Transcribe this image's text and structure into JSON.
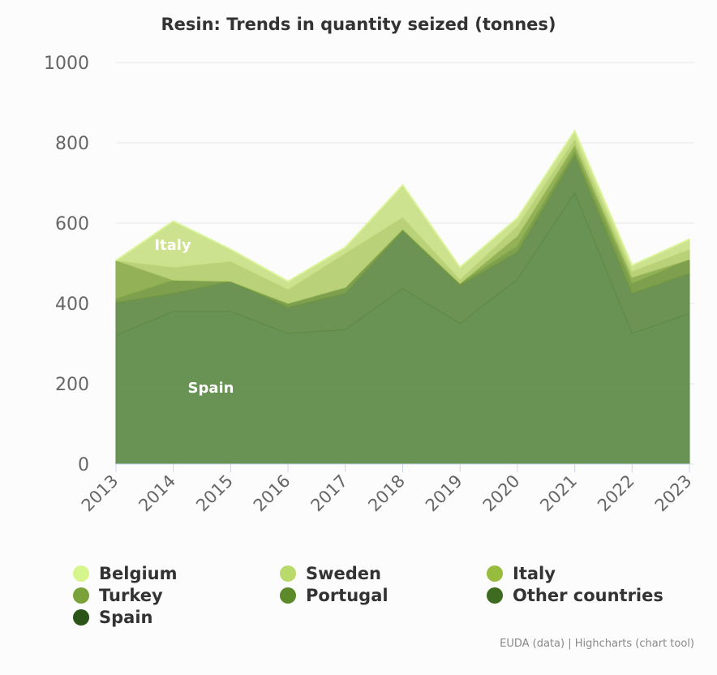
{
  "chart_data": {
    "type": "area",
    "stacked": true,
    "title": "Resin: Trends in quantity seized (tonnes)",
    "xlabel": "",
    "ylabel": "",
    "categories": [
      "2013",
      "2014",
      "2015",
      "2016",
      "2017",
      "2018",
      "2019",
      "2020",
      "2021",
      "2022",
      "2023"
    ],
    "ylim": [
      0,
      1000
    ],
    "yticks": [
      "0",
      "200",
      "400",
      "600",
      "800",
      "1000"
    ],
    "grid": true,
    "legend_position": "bottom",
    "series": [
      {
        "name": "Spain",
        "color": "#5c8a46",
        "values": [
          320,
          380,
          380,
          325,
          335,
          437,
          350,
          460,
          675,
          325,
          375
        ]
      },
      {
        "name": "Other countries",
        "color": "#5f8a45",
        "values": [
          82,
          45,
          75,
          65,
          90,
          143,
          95,
          68,
          93,
          100,
          100
        ]
      },
      {
        "name": "Portugal",
        "color": "#73983f",
        "values": [
          10,
          33,
          0,
          10,
          15,
          5,
          5,
          15,
          12,
          25,
          35
        ]
      },
      {
        "name": "Turkey",
        "color": "#8aab4a",
        "values": [
          95,
          0,
          0,
          0,
          0,
          0,
          0,
          25,
          15,
          15,
          0
        ]
      },
      {
        "name": "Italy",
        "color": "#b3cd6c",
        "values": [
          0,
          32,
          50,
          35,
          85,
          30,
          10,
          25,
          15,
          15,
          25
        ]
      },
      {
        "name": "Sweden",
        "color": "#c8df84",
        "values": [
          0,
          115,
          30,
          20,
          15,
          80,
          30,
          20,
          20,
          15,
          25
        ]
      },
      {
        "name": "Belgium",
        "color": "#d9f08e",
        "values": [
          0,
          0,
          0,
          0,
          0,
          0,
          0,
          0,
          0,
          0,
          0
        ]
      }
    ],
    "annotations": [
      "Italy",
      "Spain"
    ]
  },
  "legend": [
    {
      "label": "Belgium",
      "color": "#d6f58c"
    },
    {
      "label": "Sweden",
      "color": "#b9d96a"
    },
    {
      "label": "Italy",
      "color": "#98bd3e"
    },
    {
      "label": "Turkey",
      "color": "#7ba13a"
    },
    {
      "label": "Portugal",
      "color": "#5c8a2a"
    },
    {
      "label": "Other countries",
      "color": "#3d6b1f"
    },
    {
      "label": "Spain",
      "color": "#2a5416"
    }
  ],
  "credits": "EUDA (data) | Highcharts (chart tool)"
}
